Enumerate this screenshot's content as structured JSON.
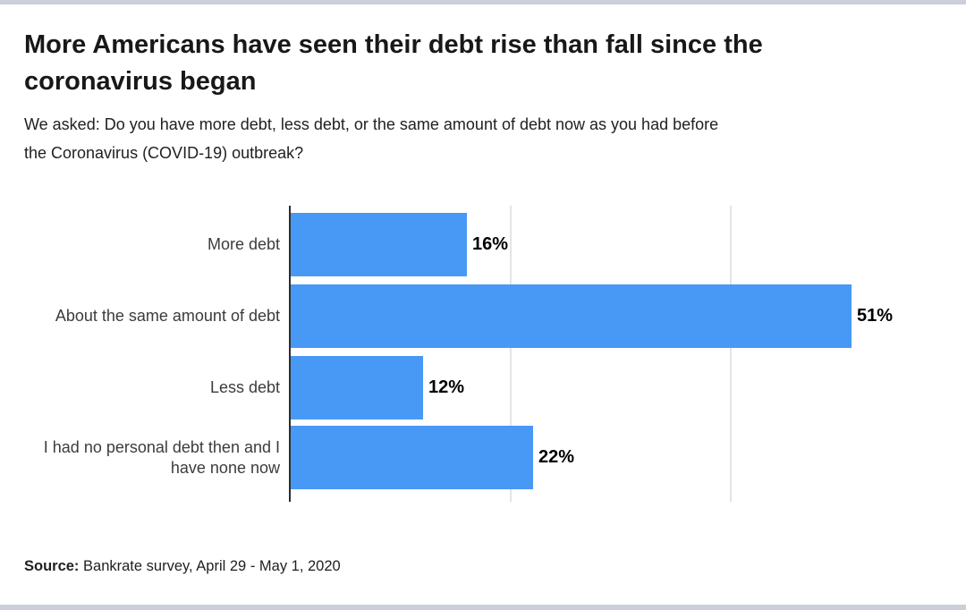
{
  "page": {
    "background": "#ffffff",
    "border_color": "#cbcfd8"
  },
  "header": {
    "title": "More Americans have seen their debt rise than fall since the\ncoronavirus began",
    "subtitle": "We asked: Do you have more debt, less debt, or the same amount of debt now as you had before\nthe Coronavirus (COVID-19) outbreak?"
  },
  "footer": {
    "source_label": "Source:",
    "source_text": "Bankrate survey, April 29 - May 1, 2020"
  },
  "chart_data": {
    "type": "bar",
    "orientation": "horizontal",
    "title": "More Americans have seen their debt rise than fall since the coronavirus began",
    "subtitle": "We asked: Do you have more debt, less debt, or the same amount of debt now as you had before the Coronavirus (COVID-19) outbreak?",
    "categories": [
      "More debt",
      "About the same amount of debt",
      "Less debt",
      "I had no personal debt then and I have none now"
    ],
    "category_display": [
      "More debt",
      "About the same amount of debt",
      "Less debt",
      "I had no personal debt then and I\nhave none now"
    ],
    "values": [
      16,
      51,
      12,
      22
    ],
    "value_labels": [
      "16%",
      "51%",
      "12%",
      "22%"
    ],
    "unit": "%",
    "xlabel": "",
    "ylabel": "",
    "xlim": [
      0,
      60
    ],
    "gridlines_pct": [
      20,
      40
    ],
    "grid": true,
    "legend": "none",
    "bar_color": "#4898f6",
    "axis_color": "#2d2d2d",
    "source_note": "Source: Bankrate survey, April 29 - May 1, 2020"
  }
}
